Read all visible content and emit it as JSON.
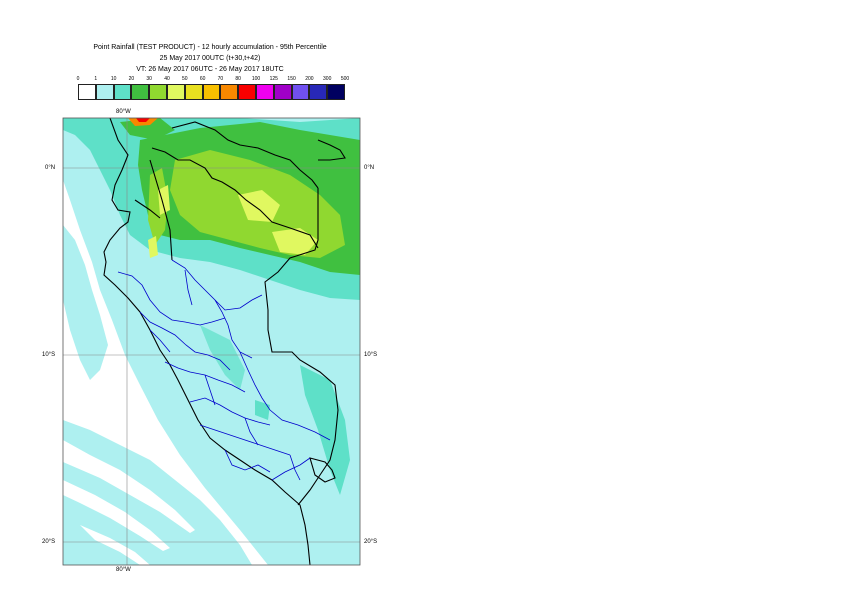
{
  "header": {
    "line1": "Point Rainfall (TEST PRODUCT) - 12 hourly accumulation - 95th Percentile",
    "line2": "25 May 2017 00UTC (t+30,t+42)",
    "line3": "VT: 26 May 2017 06UTC - 26 May 2017 18UTC"
  },
  "legend": {
    "thresholds": [
      "0",
      "1",
      "10",
      "20",
      "30",
      "40",
      "50",
      "60",
      "70",
      "80",
      "100",
      "125",
      "150",
      "200",
      "300",
      "500"
    ],
    "colors": [
      "#ffffff",
      "#aef0f0",
      "#5ee0c8",
      "#40c040",
      "#90d830",
      "#e0f860",
      "#e8e020",
      "#f8c000",
      "#f88800",
      "#f80000",
      "#f000f0",
      "#a000c8",
      "#7050f0",
      "#2828b8",
      "#000060"
    ]
  },
  "map": {
    "colors": {
      "background": "#ffffff",
      "lightcyan": "#aef0f0",
      "teal": "#5ee0c8",
      "green": "#40c040",
      "lime": "#90d830",
      "yellow": "#e0f860",
      "coast": "#000000",
      "regions": "#0000cc",
      "grid": "#888888"
    },
    "labels": {
      "lon_top": "80°W",
      "lon_bottom": "80°W",
      "lat_0_left": "0°N",
      "lat_0_right": "0°N",
      "lat_10_left": "10°S",
      "lat_10_right": "10°S",
      "lat_20_left": "20°S",
      "lat_20_right": "20°S"
    }
  }
}
